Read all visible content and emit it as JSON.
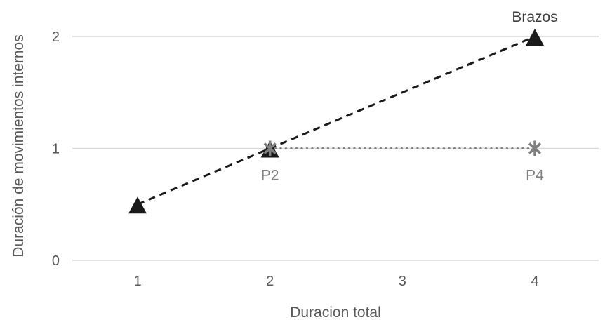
{
  "chart_data": {
    "type": "line",
    "title": "",
    "xlabel": "Duracion total",
    "ylabel": "Duración de movimientos internos",
    "x_ticks": [
      "1",
      "2",
      "3",
      "4"
    ],
    "y_ticks": [
      "0",
      "1",
      "2"
    ],
    "xlim": [
      0.5,
      4.5
    ],
    "ylim": [
      0,
      2.3
    ],
    "grid": "horizontal-gridlines-only",
    "legend_position": "none",
    "series": [
      {
        "name": "Brazos",
        "color": "#1a1a1a",
        "line_style": "dashed",
        "marker": "triangle",
        "points": [
          [
            1,
            0.5
          ],
          [
            2,
            1
          ],
          [
            4,
            2
          ]
        ],
        "point_labels": [
          {
            "text": "Brazos",
            "x": 4,
            "y": 2,
            "position": "above",
            "color": "#3f3f3f"
          }
        ]
      },
      {
        "name": "",
        "color": "#7f7f7f",
        "line_style": "dotted",
        "marker": "asterisk",
        "points": [
          [
            2,
            1
          ],
          [
            4,
            1
          ]
        ],
        "point_labels": [
          {
            "text": "P2",
            "x": 2,
            "y": 1,
            "position": "below",
            "color": "#7f7f7f"
          },
          {
            "text": "P4",
            "x": 4,
            "y": 1,
            "position": "below",
            "color": "#7f7f7f"
          }
        ]
      }
    ]
  },
  "styles": {
    "background": "#ffffff",
    "gridline_color": "#d9d9d9",
    "tick_label_color": "#595959",
    "axis_title_color": "#595959"
  }
}
